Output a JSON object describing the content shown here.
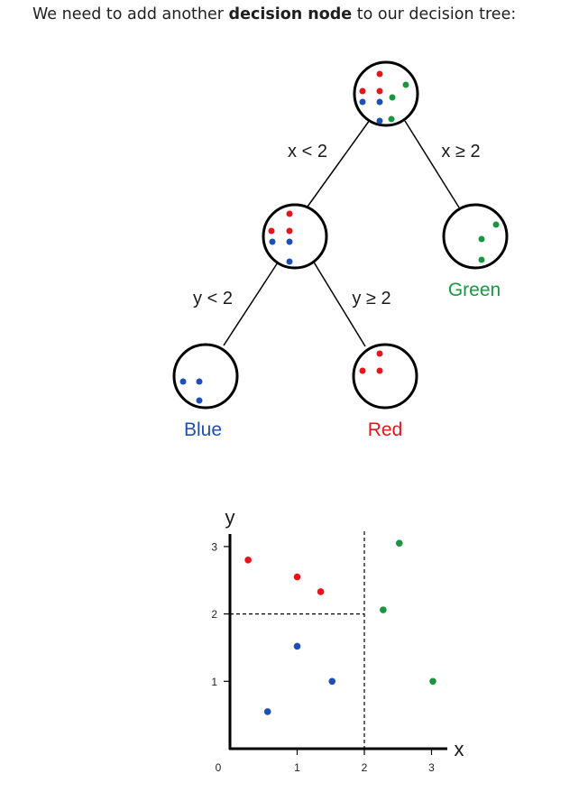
{
  "intro": {
    "before": "We need to add another ",
    "bold": "decision node",
    "after": " to our decision tree:"
  },
  "colors": {
    "red": "#e8141c",
    "blue": "#1e4fb5",
    "green": "#1a9641",
    "ink": "#000000"
  },
  "tree": {
    "edges": {
      "x_less": "x < 2",
      "x_geq": "x ≥ 2",
      "y_less": "y < 2",
      "y_geq": "y ≥ 2"
    },
    "leaves": {
      "green": "Green",
      "blue": "Blue",
      "red": "Red"
    }
  },
  "chart_data": {
    "type": "scatter",
    "xlabel": "x",
    "ylabel": "y",
    "xlim": [
      0,
      3.3
    ],
    "ylim": [
      0,
      3.2
    ],
    "xticks": [
      "0",
      "1",
      "2",
      "3"
    ],
    "yticks": [
      "1",
      "2",
      "3"
    ],
    "series": [
      {
        "color": "#e8141c",
        "points": [
          [
            0.27,
            2.8
          ],
          [
            1.0,
            2.55
          ],
          [
            1.35,
            2.33
          ]
        ]
      },
      {
        "color": "#1e4fb5",
        "points": [
          [
            1.0,
            1.52
          ],
          [
            1.52,
            1.0
          ],
          [
            0.56,
            0.55
          ]
        ]
      },
      {
        "color": "#1a9641",
        "points": [
          [
            2.52,
            3.05
          ],
          [
            2.28,
            2.06
          ],
          [
            3.02,
            1.0
          ]
        ]
      }
    ],
    "splits": [
      {
        "axis": "x",
        "value": 2
      },
      {
        "axis": "y",
        "value": 2,
        "x_max": 2
      }
    ]
  }
}
